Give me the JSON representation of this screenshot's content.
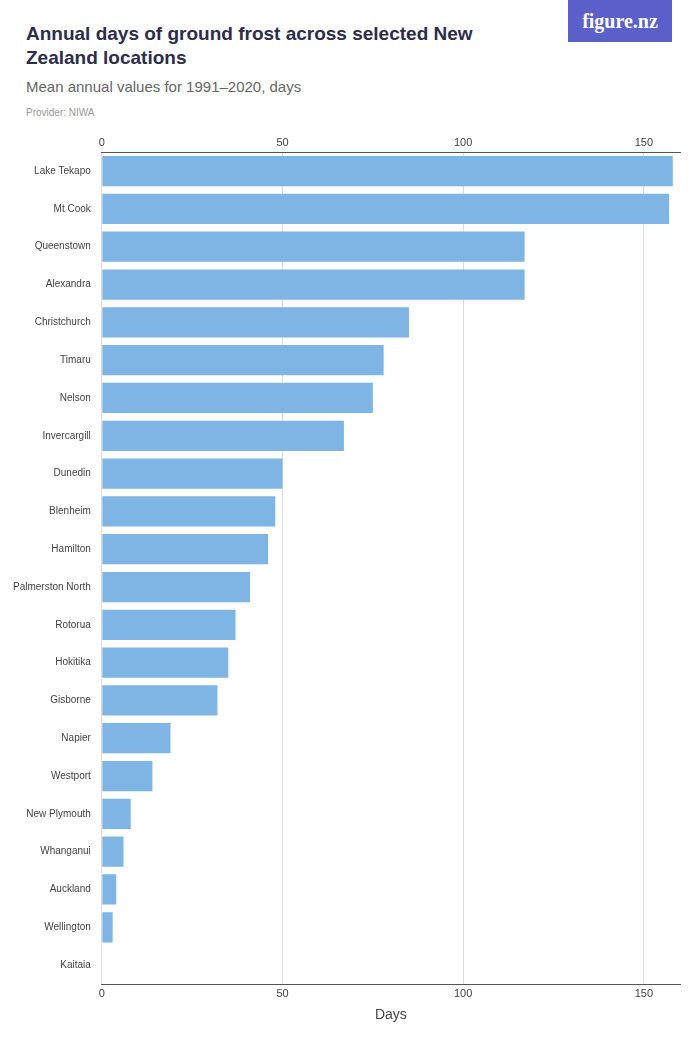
{
  "chart_data": {
    "type": "bar",
    "orientation": "horizontal",
    "title": "Annual days of ground frost across selected New Zealand locations",
    "subtitle": "Mean annual values for 1991–2020, days",
    "source": "Provider: NIWA",
    "logo": "figure.nz",
    "x_label": "Days",
    "categories": [
      "Lake Tekapo",
      "Mt Cook",
      "Queenstown",
      "Alexandra",
      "Christchurch",
      "Timaru",
      "Nelson",
      "Invercargill",
      "Dunedin",
      "Blenheim",
      "Hamilton",
      "Palmerston North",
      "Rotorua",
      "Hokitika",
      "Gisborne",
      "Napier",
      "Westport",
      "New Plymouth",
      "Whanganui",
      "Auckland",
      "Wellington",
      "Kaitaia"
    ],
    "values": [
      158,
      157,
      117,
      117,
      85,
      78,
      75,
      67,
      50,
      48,
      46,
      41,
      37,
      35,
      32,
      19,
      14,
      8,
      6,
      4,
      3,
      0
    ],
    "color": "#7eb5e4",
    "xlim": [
      0,
      160
    ],
    "xticks": [
      0,
      50,
      100,
      150
    ],
    "grid": true
  }
}
